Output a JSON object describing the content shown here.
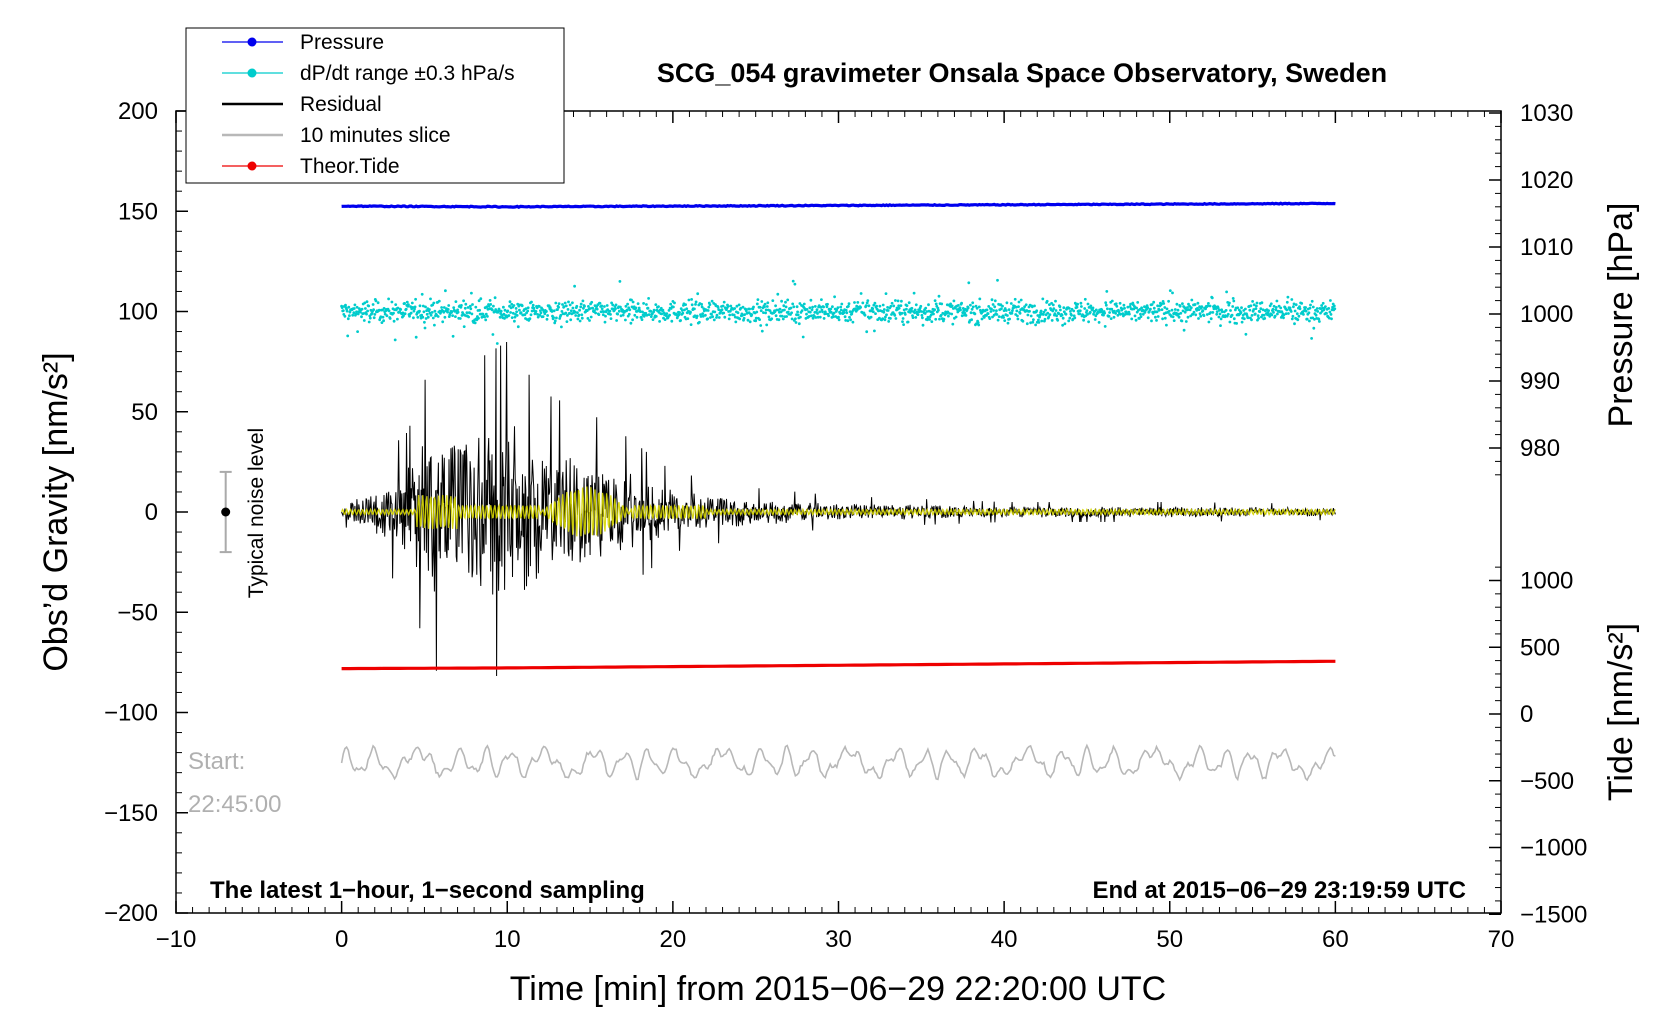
{
  "chart_data": {
    "type": "line",
    "title": "SCG_054 gravimeter Onsala Space Observatory, Sweden",
    "xlabel": "Time [min] from 2015−06−29 22:20:00 UTC",
    "ylabel_left": "Obs’d Gravity [nm/s²]",
    "ylabel_right_top": "Pressure [hPa]",
    "ylabel_right_bottom": "Tide [nm/s²]",
    "xlim": [
      -10,
      70
    ],
    "ylim_left": [
      -200,
      200
    ],
    "x_ticks": [
      "−10",
      "0",
      "10",
      "20",
      "30",
      "40",
      "50",
      "60",
      "70"
    ],
    "x_tick_values": [
      -10,
      0,
      10,
      20,
      30,
      40,
      50,
      60,
      70
    ],
    "y_left_ticks": [
      "200",
      "150",
      "100",
      "50",
      "0",
      "−50",
      "−100",
      "−150",
      "−200"
    ],
    "y_left_tick_values": [
      200,
      150,
      100,
      50,
      0,
      -50,
      -100,
      -150,
      -200
    ],
    "pressure_ticks": [
      "1030",
      "1020",
      "1010",
      "1000",
      "990",
      "980"
    ],
    "pressure_tick_values": [
      1030,
      1020,
      1010,
      1000,
      990,
      980
    ],
    "tide_ticks": [
      "1000",
      "500",
      "0",
      "−500",
      "−1000",
      "−1500"
    ],
    "tide_tick_values": [
      1000,
      500,
      0,
      -500,
      -1000,
      -1500
    ],
    "legend": [
      {
        "label": "Pressure",
        "color": "#0000ee",
        "marker": true
      },
      {
        "label": "dP/dt range ±0.3 hPa/s",
        "color": "#00cccc",
        "marker": true
      },
      {
        "label": "Residual",
        "color": "#000000",
        "marker": false
      },
      {
        "label": "10 minutes slice",
        "color": "#b8b8b8",
        "marker": false
      },
      {
        "label": "Theor.Tide",
        "color": "#ee0000",
        "marker": true
      }
    ],
    "series": [
      {
        "name": "Pressure",
        "axis": "pressure",
        "x": [
          0,
          10,
          20,
          30,
          40,
          50,
          60
        ],
        "values": [
          1016.1,
          1016.0,
          1016.1,
          1016.2,
          1016.3,
          1016.4,
          1016.5
        ]
      },
      {
        "name": "dP/dt range ±0.3 hPa/s",
        "axis": "gravity-offset",
        "center": 100,
        "approx_range": [
          85,
          125
        ]
      },
      {
        "name": "Residual",
        "axis": "gravity",
        "x": [
          0,
          2,
          4,
          5.6,
          7,
          10,
          12,
          16,
          20,
          25,
          30,
          40,
          50,
          60
        ],
        "envelope": [
          5,
          25,
          40,
          80,
          70,
          85,
          60,
          45,
          20,
          12,
          8,
          5,
          5,
          4
        ]
      },
      {
        "name": "10 minutes slice",
        "axis": "gravity",
        "center": -125,
        "approx_range": [
          -135,
          -113
        ]
      },
      {
        "name": "Theor.Tide",
        "axis": "tide",
        "x": [
          0,
          10,
          20,
          30,
          40,
          50,
          60
        ],
        "values": [
          340,
          345,
          355,
          365,
          375,
          385,
          395
        ]
      }
    ],
    "noise_level": {
      "label": "Typical noise level",
      "x": -7,
      "center": 0,
      "low": -20,
      "high": 20
    },
    "start_label": "Start:",
    "start_time": "22:45:00",
    "footer_left": "The latest 1−hour, 1−second sampling",
    "footer_right": "End at 2015−06−29 23:19:59 UTC"
  }
}
